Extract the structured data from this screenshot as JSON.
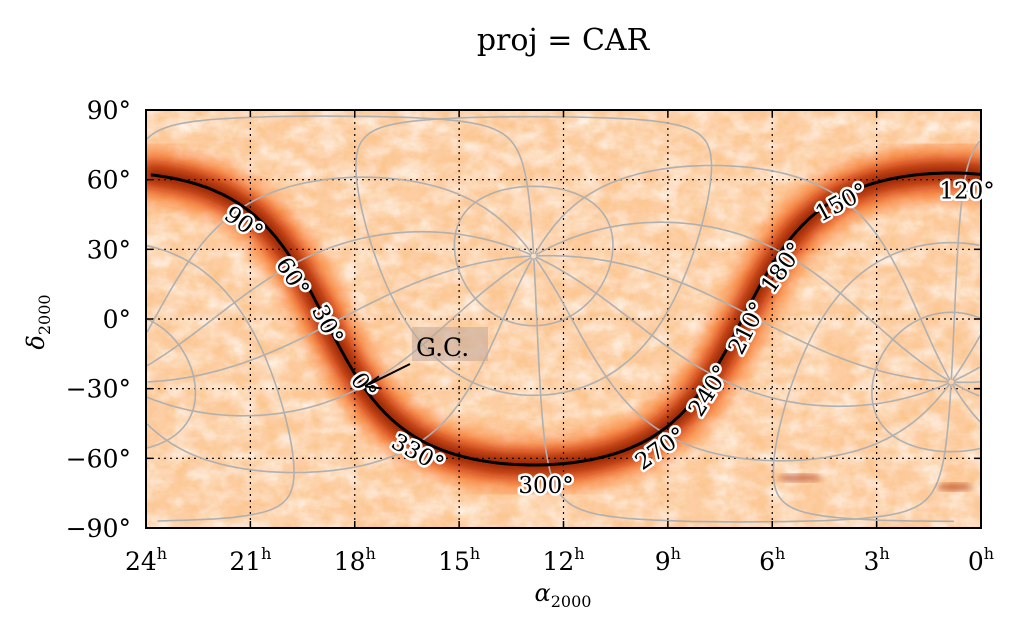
{
  "title": "proj = CAR",
  "axes": {
    "xlabel_main": "α",
    "xlabel_sub": "2000",
    "ylabel_main": "δ",
    "ylabel_sub": "2000",
    "ra_range_hours": [
      24,
      0
    ],
    "dec_range_deg": [
      -90,
      90
    ],
    "ra_ticks": [
      {
        "value": 24,
        "label": "24",
        "unit": "h"
      },
      {
        "value": 21,
        "label": "21",
        "unit": "h"
      },
      {
        "value": 18,
        "label": "18",
        "unit": "h"
      },
      {
        "value": 15,
        "label": "15",
        "unit": "h"
      },
      {
        "value": 12,
        "label": "12",
        "unit": "h"
      },
      {
        "value": 9,
        "label": "9",
        "unit": "h"
      },
      {
        "value": 6,
        "label": "6",
        "unit": "h"
      },
      {
        "value": 3,
        "label": "3",
        "unit": "h"
      },
      {
        "value": 0,
        "label": "0",
        "unit": "h"
      }
    ],
    "dec_ticks": [
      {
        "value": 90,
        "label": "90°"
      },
      {
        "value": 60,
        "label": "60°"
      },
      {
        "value": 30,
        "label": "30°"
      },
      {
        "value": 0,
        "label": "0°"
      },
      {
        "value": -30,
        "label": "−30°"
      },
      {
        "value": -60,
        "label": "−60°"
      },
      {
        "value": -90,
        "label": "−90°"
      }
    ],
    "grid": true,
    "grid_style": "dotted"
  },
  "galactic_longitude_labels": [
    {
      "l": 0,
      "text": "0°",
      "ra": 17.76,
      "dec": -29.0
    },
    {
      "l": 30,
      "text": "30°",
      "ra": 18.8,
      "dec": -2.5
    },
    {
      "l": 60,
      "text": "60°",
      "ra": 19.8,
      "dec": 18.0
    },
    {
      "l": 90,
      "text": "90°",
      "ra": 21.2,
      "dec": 41.0
    },
    {
      "l": 120,
      "text": "120°",
      "ra": 0.4,
      "dec": 55.0
    },
    {
      "l": 150,
      "text": "150°",
      "ra": 4.0,
      "dec": 50.0
    },
    {
      "l": 180,
      "text": "180°",
      "ra": 5.7,
      "dec": 22.0
    },
    {
      "l": 210,
      "text": "210°",
      "ra": 6.7,
      "dec": -4.0
    },
    {
      "l": 240,
      "text": "240°",
      "ra": 7.8,
      "dec": -31.0
    },
    {
      "l": 270,
      "text": "270°",
      "ra": 9.2,
      "dec": -56.0
    },
    {
      "l": 300,
      "text": "300°",
      "ra": 12.5,
      "dec": -72.0
    },
    {
      "l": 330,
      "text": "330°",
      "ra": 16.2,
      "dec": -58.0
    }
  ],
  "annotation": {
    "text": "G.C.",
    "target_ra": 17.76,
    "target_dec": -29.0
  },
  "colors": {
    "galactic_plane": "#000000",
    "galactic_grid": "#b0b0b0",
    "equatorial_grid": "#000000",
    "map_cmap": "Oranges"
  }
}
